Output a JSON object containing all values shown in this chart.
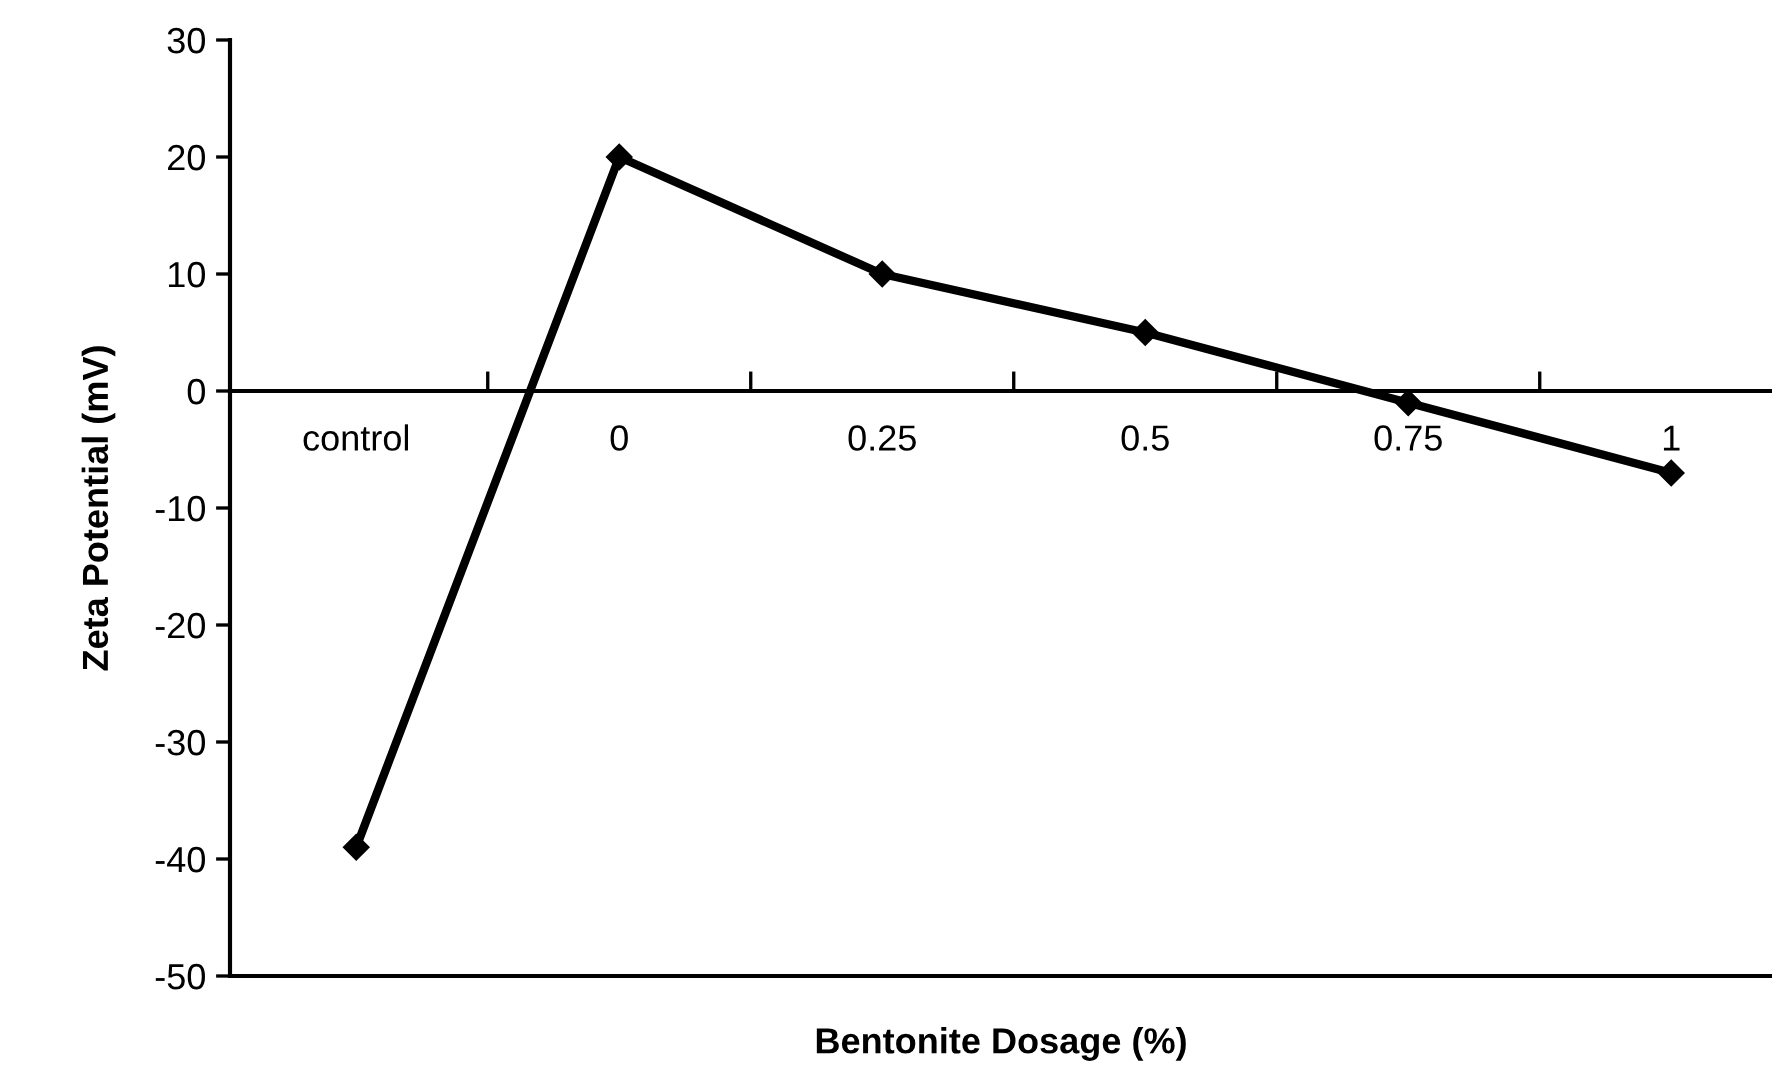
{
  "chart_data": {
    "type": "line",
    "xlabel": "Bentonite Dosage (%)",
    "ylabel": "Zeta Potential (mV)",
    "categories": [
      "control",
      "0",
      "0.25",
      "0.5",
      "0.75",
      "1"
    ],
    "series": [
      {
        "color": "#000000",
        "values": [
          -39,
          20,
          10,
          5,
          -1,
          -7
        ]
      }
    ],
    "marker": "diamond",
    "line_style": "solid",
    "ylim": [
      -50,
      30
    ],
    "yticks": [
      -50,
      -40,
      -30,
      -20,
      -10,
      0,
      10,
      20,
      30
    ],
    "grid": false,
    "legend": false
  }
}
